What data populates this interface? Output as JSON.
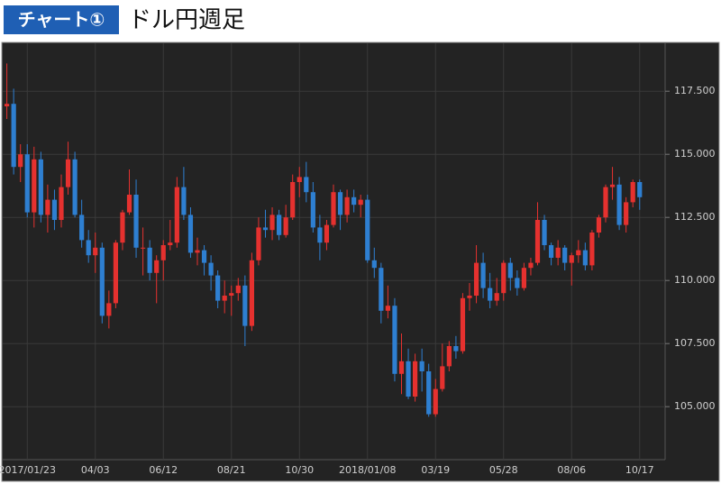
{
  "header": {
    "badge": "チャート①",
    "title": "ドル円週足"
  },
  "chart_data": {
    "type": "candlestick",
    "categories": [
      null,
      null,
      null,
      "2017/01/23",
      null,
      null,
      null,
      null,
      null,
      null,
      null,
      null,
      null,
      "04/03",
      null,
      null,
      null,
      null,
      null,
      null,
      null,
      null,
      null,
      "06/12",
      null,
      null,
      null,
      null,
      null,
      null,
      null,
      null,
      null,
      "08/21",
      null,
      null,
      null,
      null,
      null,
      null,
      null,
      null,
      null,
      "10/30",
      null,
      null,
      null,
      null,
      null,
      null,
      null,
      null,
      null,
      "2018/01/08",
      null,
      null,
      null,
      null,
      null,
      null,
      null,
      null,
      null,
      "03/19",
      null,
      null,
      null,
      null,
      null,
      null,
      null,
      null,
      null,
      "05/28",
      null,
      null,
      null,
      null,
      null,
      null,
      null,
      null,
      null,
      "08/06",
      null,
      null,
      null,
      null,
      null,
      null,
      null,
      null,
      null,
      "10/17"
    ],
    "series": [
      {
        "up_color": "#e5312f",
        "down_color": "#2e7fd1",
        "ohlc": [
          [
            116.9,
            118.6,
            116.4,
            117.0
          ],
          [
            117.0,
            117.6,
            114.2,
            114.5
          ],
          [
            114.5,
            115.4,
            113.9,
            115.0
          ],
          [
            115.0,
            115.4,
            112.5,
            112.7
          ],
          [
            112.7,
            115.3,
            112.1,
            114.8
          ],
          [
            114.8,
            115.1,
            112.3,
            112.6
          ],
          [
            112.6,
            113.8,
            111.9,
            113.2
          ],
          [
            113.2,
            113.6,
            112.0,
            112.4
          ],
          [
            112.4,
            114.2,
            112.1,
            113.7
          ],
          [
            113.7,
            115.5,
            113.4,
            114.8
          ],
          [
            114.8,
            115.1,
            112.5,
            112.6
          ],
          [
            112.6,
            113.2,
            111.3,
            111.6
          ],
          [
            111.6,
            112.0,
            110.7,
            111.0
          ],
          [
            111.0,
            111.9,
            110.3,
            111.3
          ],
          [
            111.3,
            111.5,
            108.3,
            108.6
          ],
          [
            108.6,
            109.6,
            108.1,
            109.1
          ],
          [
            109.1,
            111.6,
            108.9,
            111.5
          ],
          [
            111.5,
            112.8,
            111.2,
            112.7
          ],
          [
            112.7,
            114.4,
            112.6,
            113.4
          ],
          [
            113.4,
            114.0,
            110.9,
            111.3
          ],
          [
            111.3,
            112.1,
            110.2,
            111.3
          ],
          [
            111.3,
            111.6,
            110.0,
            110.3
          ],
          [
            110.3,
            111.0,
            109.1,
            110.8
          ],
          [
            110.8,
            111.6,
            110.0,
            111.4
          ],
          [
            111.4,
            112.4,
            111.2,
            111.5
          ],
          [
            111.5,
            114.1,
            111.3,
            113.7
          ],
          [
            113.7,
            114.5,
            112.4,
            112.6
          ],
          [
            112.6,
            112.9,
            110.9,
            111.1
          ],
          [
            111.1,
            111.7,
            110.6,
            111.2
          ],
          [
            111.2,
            111.4,
            110.2,
            110.7
          ],
          [
            110.7,
            111.0,
            109.6,
            110.2
          ],
          [
            110.2,
            110.4,
            108.9,
            109.2
          ],
          [
            109.2,
            110.0,
            108.7,
            109.4
          ],
          [
            109.4,
            109.8,
            108.6,
            109.5
          ],
          [
            109.5,
            110.1,
            109.2,
            109.8
          ],
          [
            109.8,
            110.2,
            107.4,
            108.2
          ],
          [
            108.2,
            111.1,
            108.0,
            110.8
          ],
          [
            110.8,
            112.5,
            110.6,
            112.1
          ],
          [
            112.1,
            112.8,
            111.7,
            112.0
          ],
          [
            112.0,
            112.9,
            111.6,
            112.6
          ],
          [
            112.6,
            112.8,
            111.6,
            111.8
          ],
          [
            111.8,
            113.0,
            111.7,
            112.5
          ],
          [
            112.5,
            114.2,
            112.4,
            113.9
          ],
          [
            113.9,
            114.5,
            113.3,
            114.1
          ],
          [
            114.1,
            114.7,
            113.1,
            113.5
          ],
          [
            113.5,
            113.9,
            111.9,
            112.1
          ],
          [
            112.1,
            112.6,
            110.8,
            111.5
          ],
          [
            111.5,
            112.4,
            111.2,
            112.2
          ],
          [
            112.2,
            113.8,
            112.1,
            113.5
          ],
          [
            113.5,
            113.6,
            112.0,
            112.6
          ],
          [
            112.6,
            113.6,
            112.3,
            113.3
          ],
          [
            113.3,
            113.6,
            112.7,
            113.0
          ],
          [
            113.0,
            113.4,
            112.5,
            113.2
          ],
          [
            113.2,
            113.4,
            110.7,
            110.8
          ],
          [
            110.8,
            111.3,
            110.1,
            110.5
          ],
          [
            110.5,
            110.7,
            108.3,
            108.8
          ],
          [
            108.8,
            109.8,
            108.5,
            109.0
          ],
          [
            109.0,
            109.3,
            106.0,
            106.3
          ],
          [
            106.3,
            107.9,
            105.5,
            106.8
          ],
          [
            106.8,
            107.3,
            105.3,
            105.4
          ],
          [
            105.4,
            107.1,
            105.2,
            106.8
          ],
          [
            106.8,
            107.3,
            105.6,
            106.4
          ],
          [
            106.4,
            106.7,
            104.6,
            104.7
          ],
          [
            104.7,
            106.1,
            104.6,
            105.7
          ],
          [
            105.7,
            107.5,
            105.6,
            106.6
          ],
          [
            106.6,
            107.6,
            106.4,
            107.4
          ],
          [
            107.4,
            107.8,
            106.9,
            107.2
          ],
          [
            107.2,
            109.5,
            107.1,
            109.3
          ],
          [
            109.3,
            109.9,
            108.8,
            109.4
          ],
          [
            109.4,
            111.4,
            109.1,
            110.7
          ],
          [
            110.7,
            111.1,
            109.3,
            109.7
          ],
          [
            109.7,
            110.3,
            108.9,
            109.2
          ],
          [
            109.2,
            110.1,
            109.0,
            109.5
          ],
          [
            109.5,
            110.8,
            109.2,
            110.7
          ],
          [
            110.7,
            110.9,
            109.6,
            110.1
          ],
          [
            110.1,
            110.4,
            109.4,
            109.7
          ],
          [
            109.7,
            110.7,
            109.6,
            110.5
          ],
          [
            110.5,
            110.9,
            110.2,
            110.7
          ],
          [
            110.7,
            113.1,
            110.6,
            112.4
          ],
          [
            112.4,
            112.6,
            111.2,
            111.4
          ],
          [
            111.4,
            111.5,
            110.6,
            110.9
          ],
          [
            110.9,
            111.6,
            110.6,
            111.3
          ],
          [
            111.3,
            111.4,
            110.4,
            110.7
          ],
          [
            110.7,
            111.1,
            109.8,
            111.0
          ],
          [
            111.0,
            111.6,
            110.7,
            111.2
          ],
          [
            111.2,
            111.5,
            110.4,
            110.6
          ],
          [
            110.6,
            112.0,
            110.4,
            111.9
          ],
          [
            111.9,
            112.6,
            111.7,
            112.5
          ],
          [
            112.5,
            113.8,
            112.3,
            113.7
          ],
          [
            113.7,
            114.5,
            113.2,
            113.8
          ],
          [
            113.8,
            114.1,
            112.0,
            112.2
          ],
          [
            112.2,
            113.3,
            111.9,
            113.1
          ],
          [
            113.1,
            114.0,
            112.9,
            113.9
          ],
          [
            113.9,
            114.0,
            112.8,
            113.3
          ]
        ]
      }
    ],
    "ylim": [
      102.9,
      119.4
    ],
    "yticks": [
      {
        "value": 105,
        "label": "105.000"
      },
      {
        "value": 107.5,
        "label": "107.500"
      },
      {
        "value": 110,
        "label": "110.000"
      },
      {
        "value": 112.5,
        "label": "112.500"
      },
      {
        "value": 115,
        "label": "115.000"
      },
      {
        "value": 117.5,
        "label": "117.500"
      }
    ],
    "grid": true
  }
}
